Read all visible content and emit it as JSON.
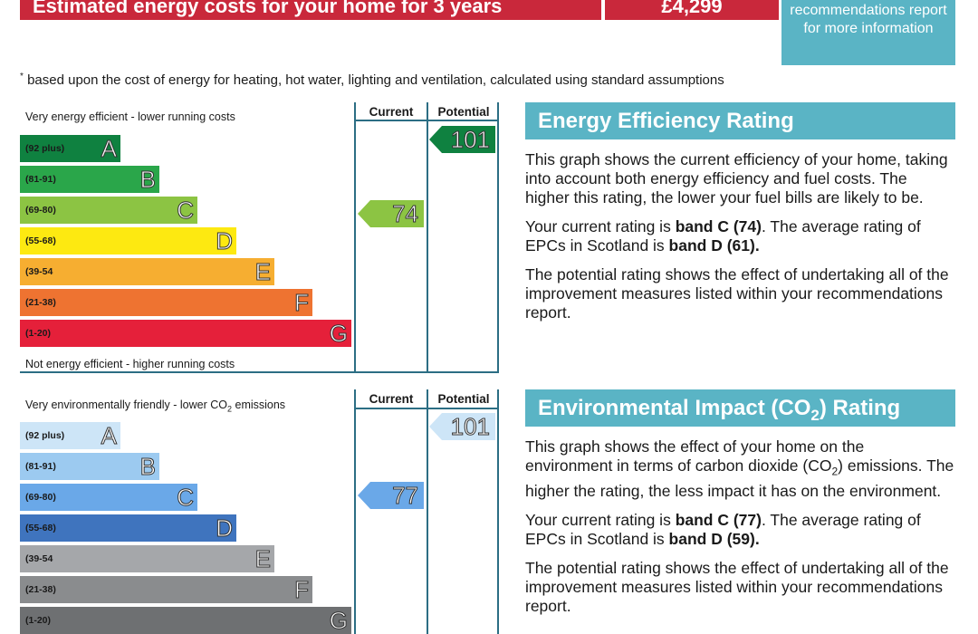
{
  "header": {
    "cost_label": "Estimated energy costs for your home for 3 years",
    "cost_value": "£4,299",
    "recommendations_text": "recommendations report for more information"
  },
  "footnote": "based upon the cost of energy for heating, hot water, lighting and ventilation, calculated using standard assumptions",
  "footnote_mark": "*",
  "energy_chart": {
    "top_caption": "Very energy efficient - lower running costs",
    "bottom_caption": "Not energy efficient - higher running costs",
    "current_header": "Current",
    "potential_header": "Potential",
    "current_value": "74",
    "potential_value": "101",
    "bands": [
      {
        "range": "(92 plus)",
        "letter": "A",
        "color": "#0f8140"
      },
      {
        "range": "(81-91)",
        "letter": "B",
        "color": "#2aa64a"
      },
      {
        "range": "(69-80)",
        "letter": "C",
        "color": "#8cc443"
      },
      {
        "range": "(55-68)",
        "letter": "D",
        "color": "#fde911"
      },
      {
        "range": "(39-54",
        "letter": "E",
        "color": "#f6ae31"
      },
      {
        "range": "(21-38)",
        "letter": "F",
        "color": "#ee7331"
      },
      {
        "range": "(1-20)",
        "letter": "G",
        "color": "#e5203a"
      }
    ],
    "current_color": "#8cc443",
    "potential_color": "#0f8140"
  },
  "env_chart": {
    "top_caption_pre": "Very environmentally friendly - lower CO",
    "top_caption_sub": "2",
    "top_caption_post": " emissions",
    "current_header": "Current",
    "potential_header": "Potential",
    "current_value": "77",
    "potential_value": "101",
    "bands": [
      {
        "range": "(92 plus)",
        "letter": "A",
        "color": "#cde5f7"
      },
      {
        "range": "(81-91)",
        "letter": "B",
        "color": "#9ccaf0"
      },
      {
        "range": "(69-80)",
        "letter": "C",
        "color": "#6aa8e8"
      },
      {
        "range": "(55-68)",
        "letter": "D",
        "color": "#3f74be"
      },
      {
        "range": "(39-54",
        "letter": "E",
        "color": "#a5a7aa"
      },
      {
        "range": "(21-38)",
        "letter": "F",
        "color": "#8a8c8e"
      },
      {
        "range": "(1-20)",
        "letter": "G",
        "color": "#6e7072"
      }
    ],
    "current_color": "#6aa8e8",
    "potential_color": "#cde5f7"
  },
  "energy_panel": {
    "title": "Energy Efficiency Rating",
    "p1": "This graph shows the current efficiency of your home, taking into account both energy efficiency and fuel costs. The higher this rating, the lower your fuel bills are likely to be.",
    "p2_pre": "Your current rating is ",
    "p2_bold1": "band C (74)",
    "p2_mid": ". The average rating of EPCs in Scotland is ",
    "p2_bold2": "band D (61).",
    "p3": "The potential rating shows the effect of undertaking all of the improvement measures listed within your recommendations report."
  },
  "env_panel": {
    "title_pre": "Environmental Impact (CO",
    "title_sub": "2",
    "title_post": ") Rating",
    "p1_pre": "This graph shows the effect of your home on the environment in terms of carbon dioxide (CO",
    "p1_sub": "2",
    "p1_post": ") emissions. The higher the rating, the less impact it has on the environment.",
    "p2_pre": "Your current rating is ",
    "p2_bold1": "band C (77)",
    "p2_mid": ". The average rating of EPCs in Scotland is ",
    "p2_bold2": "band D (59).",
    "p3": "The potential rating shows the effect of undertaking all of the improvement measures listed within your recommendations report."
  }
}
